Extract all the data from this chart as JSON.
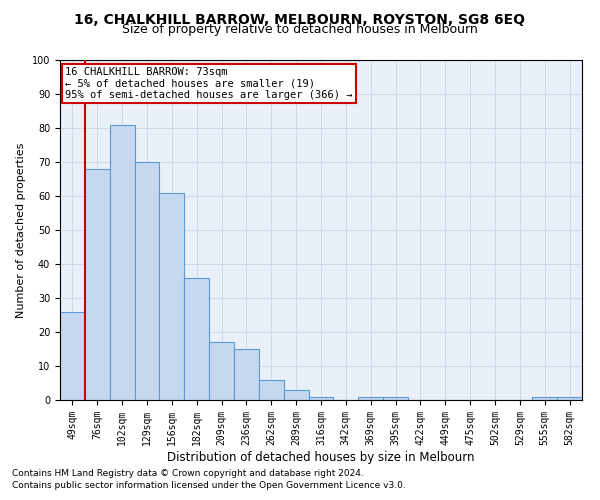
{
  "title": "16, CHALKHILL BARROW, MELBOURN, ROYSTON, SG8 6EQ",
  "subtitle": "Size of property relative to detached houses in Melbourn",
  "xlabel": "Distribution of detached houses by size in Melbourn",
  "ylabel": "Number of detached properties",
  "categories": [
    "49sqm",
    "76sqm",
    "102sqm",
    "129sqm",
    "156sqm",
    "182sqm",
    "209sqm",
    "236sqm",
    "262sqm",
    "289sqm",
    "316sqm",
    "342sqm",
    "369sqm",
    "395sqm",
    "422sqm",
    "449sqm",
    "475sqm",
    "502sqm",
    "529sqm",
    "555sqm",
    "582sqm"
  ],
  "values": [
    26,
    68,
    81,
    70,
    61,
    36,
    17,
    15,
    6,
    3,
    1,
    0,
    1,
    1,
    0,
    0,
    0,
    0,
    0,
    1,
    1
  ],
  "bar_color": "#c5d8f0",
  "bar_edge_color": "#5b9bd5",
  "bar_edge_width": 0.8,
  "grid_color": "#d0d8e8",
  "bg_color": "#eaf0f8",
  "annotation_box_text": "16 CHALKHILL BARROW: 73sqm\n← 5% of detached houses are smaller (19)\n95% of semi-detached houses are larger (366) →",
  "redline_color": "#cc0000",
  "annotation_box_color": "#cc0000",
  "ylim": [
    0,
    100
  ],
  "yticks": [
    0,
    10,
    20,
    30,
    40,
    50,
    60,
    70,
    80,
    90,
    100
  ],
  "title_fontsize": 10,
  "subtitle_fontsize": 9,
  "xlabel_fontsize": 8.5,
  "ylabel_fontsize": 8,
  "tick_fontsize": 7,
  "annotation_fontsize": 7.5,
  "footer1": "Contains HM Land Registry data © Crown copyright and database right 2024.",
  "footer2": "Contains public sector information licensed under the Open Government Licence v3.0.",
  "footer_fontsize": 6.5
}
